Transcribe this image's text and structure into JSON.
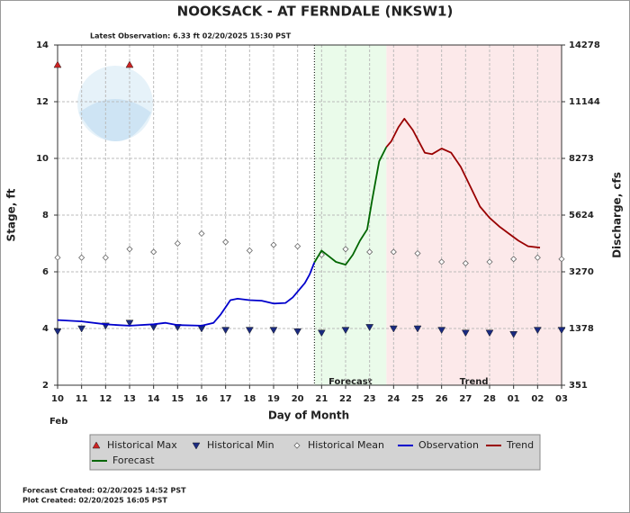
{
  "chart_data": {
    "type": "line",
    "title": "NOOKSACK - AT FERNDALE  (NKSW1)",
    "subtitle": "Latest Observation: 6.33 ft 02/20/2025 15:30 PST",
    "xlabel": "Day of Month",
    "x_sublabel": "Feb",
    "ylabel": "Stage, ft",
    "y2label": "Discharge, cfs",
    "xlim": [
      0,
      21
    ],
    "xticks": [
      {
        "value": 0,
        "label": "10"
      },
      {
        "value": 1,
        "label": "11"
      },
      {
        "value": 2,
        "label": "12"
      },
      {
        "value": 3,
        "label": "13"
      },
      {
        "value": 4,
        "label": "14"
      },
      {
        "value": 5,
        "label": "15"
      },
      {
        "value": 6,
        "label": "16"
      },
      {
        "value": 7,
        "label": "17"
      },
      {
        "value": 8,
        "label": "18"
      },
      {
        "value": 9,
        "label": "19"
      },
      {
        "value": 10,
        "label": "20"
      },
      {
        "value": 11,
        "label": "21"
      },
      {
        "value": 12,
        "label": "22"
      },
      {
        "value": 13,
        "label": "23"
      },
      {
        "value": 14,
        "label": "24"
      },
      {
        "value": 15,
        "label": "25"
      },
      {
        "value": 16,
        "label": "26"
      },
      {
        "value": 17,
        "label": "27"
      },
      {
        "value": 18,
        "label": "28"
      },
      {
        "value": 19,
        "label": "01"
      },
      {
        "value": 20,
        "label": "02"
      },
      {
        "value": 21,
        "label": "03"
      }
    ],
    "ylim": [
      2,
      14
    ],
    "yticks": [
      2,
      4,
      6,
      8,
      10,
      12,
      14
    ],
    "y2ticks": [
      351,
      1378,
      3270,
      5624,
      8273,
      11144,
      14278
    ],
    "grid": true,
    "regions": [
      {
        "label": "Forecast",
        "xlim": [
          10.7,
          13.7
        ],
        "color": "#eafbea"
      },
      {
        "label": "Trend",
        "xlim": [
          13.7,
          21
        ],
        "color": "#fce9ea"
      }
    ],
    "series": [
      {
        "name": "Historical Max",
        "marker": "triangle-up",
        "color": "#cc2222",
        "x": [
          0,
          3
        ],
        "values": [
          13.3,
          13.3
        ]
      },
      {
        "name": "Historical Min",
        "marker": "triangle-down",
        "color": "#1a2a80",
        "x": [
          0,
          1,
          2,
          3,
          4,
          5,
          6,
          7,
          8,
          9,
          10,
          11,
          12,
          13,
          14,
          15,
          16,
          17,
          18,
          19,
          20,
          21
        ],
        "values": [
          3.9,
          4.0,
          4.1,
          4.2,
          4.05,
          4.05,
          4.0,
          3.95,
          3.95,
          3.95,
          3.9,
          3.85,
          3.95,
          4.05,
          4.0,
          4.0,
          3.95,
          3.85,
          3.85,
          3.8,
          3.95,
          3.95
        ]
      },
      {
        "name": "Historical Mean",
        "marker": "diamond",
        "color": "#666666",
        "x": [
          0,
          1,
          2,
          3,
          4,
          5,
          6,
          7,
          8,
          9,
          10,
          11,
          12,
          13,
          14,
          15,
          16,
          17,
          18,
          19,
          20,
          21
        ],
        "values": [
          6.5,
          6.5,
          6.5,
          6.8,
          6.7,
          7.0,
          7.35,
          7.05,
          6.75,
          6.95,
          6.9,
          6.6,
          6.8,
          6.7,
          6.7,
          6.65,
          6.35,
          6.3,
          6.35,
          6.45,
          6.5,
          6.45
        ]
      },
      {
        "name": "Observation",
        "color": "#0000cc",
        "x": [
          0,
          1,
          2,
          2.5,
          3,
          4,
          4.5,
          5,
          6,
          6.5,
          6.8,
          7.2,
          7.5,
          8,
          8.5,
          9,
          9.5,
          9.8,
          10.3,
          10.5,
          10.7
        ],
        "values": [
          4.3,
          4.25,
          4.15,
          4.12,
          4.1,
          4.15,
          4.2,
          4.12,
          4.1,
          4.2,
          4.5,
          5.0,
          5.05,
          5.0,
          4.98,
          4.88,
          4.9,
          5.1,
          5.6,
          5.9,
          6.33
        ]
      },
      {
        "name": "Trend",
        "color": "#990000",
        "x": [
          13.7,
          13.9,
          14.2,
          14.45,
          14.8,
          15.3,
          15.6,
          16.0,
          16.4,
          16.8,
          17.2,
          17.6,
          18.0,
          18.4,
          18.8,
          19.2,
          19.6,
          20.1
        ],
        "values": [
          10.4,
          10.6,
          11.1,
          11.4,
          11.0,
          10.2,
          10.15,
          10.35,
          10.2,
          9.7,
          9.0,
          8.3,
          7.9,
          7.6,
          7.35,
          7.1,
          6.9,
          6.85
        ]
      },
      {
        "name": "Forecast",
        "color": "#006600",
        "x": [
          10.7,
          11.0,
          11.3,
          11.6,
          12.0,
          12.3,
          12.6,
          12.9,
          13.1,
          13.4,
          13.7
        ],
        "values": [
          6.33,
          6.75,
          6.55,
          6.35,
          6.25,
          6.6,
          7.1,
          7.5,
          8.5,
          9.9,
          10.4
        ]
      }
    ],
    "footer": [
      "Forecast Created: 02/20/2025 14:52 PST",
      "Plot Created: 02/20/2025 16:05 PST"
    ]
  }
}
